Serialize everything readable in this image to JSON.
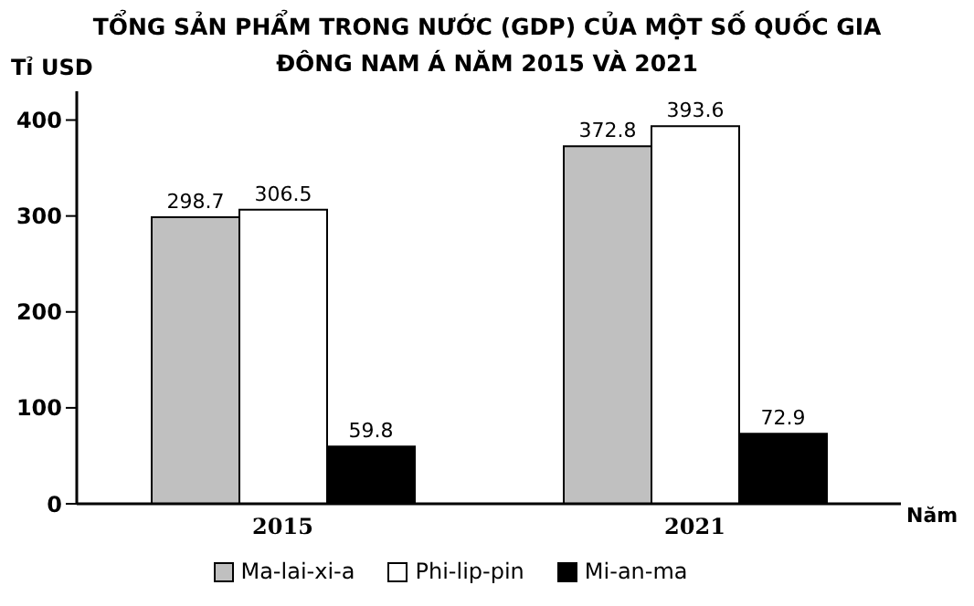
{
  "chart_data": {
    "type": "bar",
    "title": "TỔNG SẢN PHẨM TRONG NƯỚC (GDP) CỦA MỘT SỐ QUỐC GIA\nĐÔNG NAM Á NĂM 2015 VÀ 2021",
    "ylabel": "Tỉ USD",
    "xlabel": "Năm",
    "categories": [
      "2015",
      "2021"
    ],
    "series": [
      {
        "name": "Ma-lai-xi-a",
        "color": "#c0c0c0",
        "values": [
          298.7,
          372.8
        ]
      },
      {
        "name": "Phi-lip-pin",
        "color": "#ffffff",
        "values": [
          306.5,
          393.6
        ]
      },
      {
        "name": "Mi-an-ma",
        "color": "#000000",
        "values": [
          59.8,
          72.9
        ]
      }
    ],
    "ylim": [
      0,
      430
    ],
    "yticks": [
      0,
      100,
      200,
      300,
      400
    ],
    "grid": false,
    "legend": "bottom",
    "data_labels": true
  }
}
